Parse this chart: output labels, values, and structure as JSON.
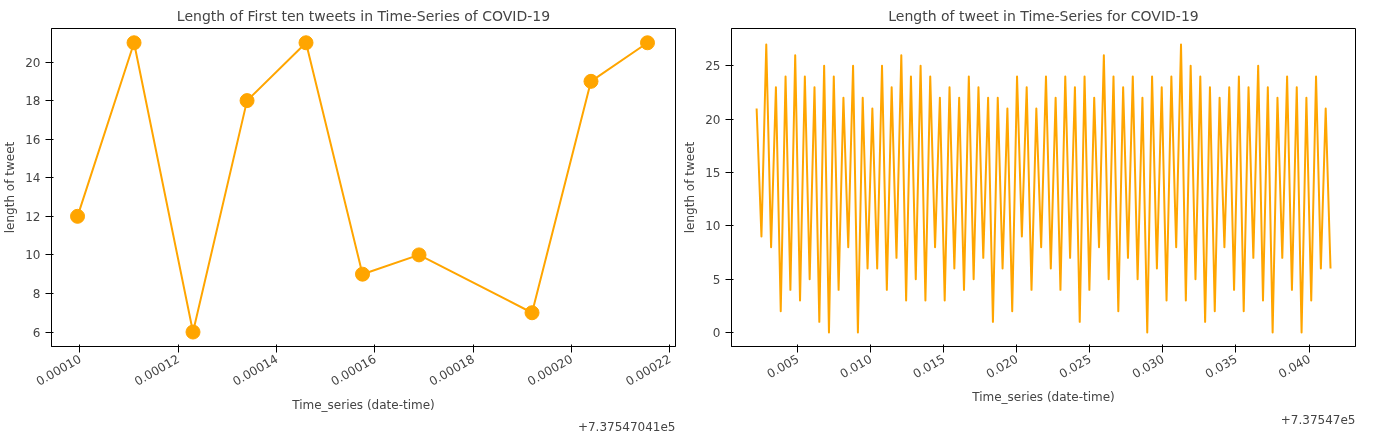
{
  "chart_data": [
    {
      "type": "line",
      "title": "Length of First ten tweets in Time-Series of COVID-19",
      "xlabel": "Time_series (date-time)",
      "ylabel": "length of tweet",
      "annotations": [
        "+7.37547041e5"
      ],
      "marker": "circle",
      "line_style": "solid",
      "grid": false,
      "x": [
        9.95e-05,
        0.000111,
        0.000123,
        0.000134,
        0.000146,
        0.0001575,
        0.000169,
        0.000192,
        0.000204,
        0.0002155
      ],
      "series": [
        {
          "color": "#ffa500",
          "values": [
            12,
            21,
            6,
            18,
            21,
            9,
            10,
            7,
            19,
            21
          ]
        }
      ],
      "xlim": [
        9.42e-05,
        0.0002212
      ],
      "ylim": [
        5.25,
        21.74
      ],
      "xticks": [
        {
          "value": 0.0001,
          "label": "0.00010"
        },
        {
          "value": 0.00012,
          "label": "0.00012"
        },
        {
          "value": 0.00014,
          "label": "0.00014"
        },
        {
          "value": 0.00016,
          "label": "0.00016"
        },
        {
          "value": 0.00018,
          "label": "0.00018"
        },
        {
          "value": 0.0002,
          "label": "0.00020"
        },
        {
          "value": 0.00022,
          "label": "0.00022"
        }
      ],
      "yticks": [
        6,
        8,
        10,
        12,
        14,
        16,
        18,
        20
      ]
    },
    {
      "type": "line",
      "title": "Length of tweet in Time-Series for COVID-19",
      "xlabel": "Time_series (date-time)",
      "ylabel": "length of tweet",
      "annotations": [
        "+7.37547e5"
      ],
      "marker": "none",
      "line_style": "solid",
      "grid": false,
      "x": [
        0.0022,
        0.00253,
        0.00286,
        0.00319,
        0.00352,
        0.00385,
        0.00418,
        0.00451,
        0.00484,
        0.00517,
        0.0055,
        0.00583,
        0.00616,
        0.00649,
        0.00682,
        0.00715,
        0.00748,
        0.00781,
        0.00814,
        0.00847,
        0.0088,
        0.00913,
        0.00946,
        0.00979,
        0.01012,
        0.01045,
        0.01078,
        0.01111,
        0.01144,
        0.01177,
        0.0121,
        0.01243,
        0.01276,
        0.01309,
        0.01342,
        0.01375,
        0.01408,
        0.01441,
        0.01474,
        0.01507,
        0.0154,
        0.01573,
        0.01606,
        0.01639,
        0.01672,
        0.01705,
        0.01738,
        0.01771,
        0.01804,
        0.01837,
        0.0187,
        0.01903,
        0.01936,
        0.01969,
        0.02002,
        0.02035,
        0.02068,
        0.02101,
        0.02134,
        0.02167,
        0.022,
        0.02233,
        0.02266,
        0.02299,
        0.02332,
        0.02365,
        0.02398,
        0.02431,
        0.02464,
        0.02497,
        0.0253,
        0.02563,
        0.02596,
        0.02629,
        0.02662,
        0.02695,
        0.02728,
        0.02761,
        0.02794,
        0.02827,
        0.0286,
        0.02893,
        0.02926,
        0.02959,
        0.02992,
        0.03025,
        0.03058,
        0.03091,
        0.03124,
        0.03157,
        0.0319,
        0.03223,
        0.03256,
        0.03289,
        0.03322,
        0.03355,
        0.03388,
        0.03421,
        0.03454,
        0.03487,
        0.0352,
        0.03553,
        0.03586,
        0.03619,
        0.03652,
        0.03685,
        0.03718,
        0.03751,
        0.03784,
        0.03817,
        0.0385,
        0.03883,
        0.03916,
        0.03949,
        0.03982,
        0.04015,
        0.04048,
        0.04081,
        0.04114,
        0.04147
      ],
      "series": [
        {
          "color": "#ffa500",
          "values": [
            21,
            9,
            27,
            8,
            23,
            2,
            24,
            4,
            26,
            3,
            24,
            5,
            23,
            1,
            25,
            0,
            24,
            4,
            22,
            8,
            25,
            0,
            22,
            6,
            21,
            6,
            25,
            4,
            23,
            7,
            26,
            3,
            24,
            5,
            25,
            3,
            24,
            8,
            22,
            3,
            23,
            6,
            22,
            4,
            24,
            5,
            23,
            7,
            22,
            1,
            22,
            6,
            21,
            2,
            24,
            9,
            23,
            4,
            21,
            8,
            24,
            6,
            22,
            4,
            24,
            7,
            23,
            1,
            24,
            4,
            22,
            8,
            26,
            5,
            24,
            2,
            23,
            7,
            24,
            5,
            22,
            0,
            24,
            6,
            23,
            3,
            24,
            8,
            27,
            3,
            25,
            5,
            24,
            1,
            23,
            2,
            22,
            8,
            23,
            4,
            24,
            2,
            23,
            7,
            25,
            3,
            23,
            0,
            22,
            7,
            24,
            4,
            23,
            0,
            22,
            3,
            24,
            6,
            21,
            6
          ]
        }
      ],
      "xlim": [
        0.000481,
        0.04318
      ],
      "ylim": [
        -1.31,
        28.5
      ],
      "xticks": [
        {
          "value": 0.005,
          "label": "0.005"
        },
        {
          "value": 0.01,
          "label": "0.010"
        },
        {
          "value": 0.015,
          "label": "0.015"
        },
        {
          "value": 0.02,
          "label": "0.020"
        },
        {
          "value": 0.025,
          "label": "0.025"
        },
        {
          "value": 0.03,
          "label": "0.030"
        },
        {
          "value": 0.035,
          "label": "0.035"
        },
        {
          "value": 0.04,
          "label": "0.040"
        }
      ],
      "yticks": [
        0,
        5,
        10,
        15,
        20,
        25
      ]
    }
  ]
}
